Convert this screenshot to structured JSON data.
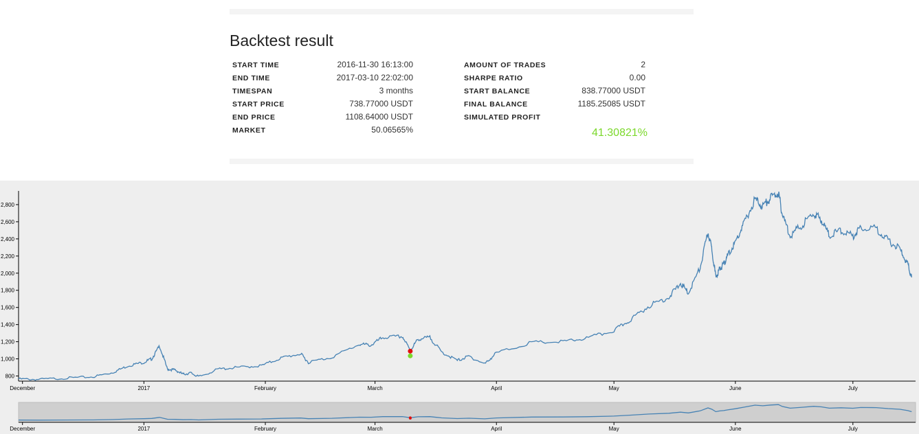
{
  "panel": {
    "title": "Backtest result",
    "left_rows": [
      {
        "label": "START TIME",
        "value": "2016-11-30 16:13:00"
      },
      {
        "label": "END TIME",
        "value": "2017-03-10 22:02:00"
      },
      {
        "label": "TIMESPAN",
        "value": "3 months"
      },
      {
        "label": "START PRICE",
        "value": "738.77000 USDT"
      },
      {
        "label": "END PRICE",
        "value": "1108.64000 USDT"
      },
      {
        "label": "MARKET",
        "value": "50.06565%"
      }
    ],
    "right_rows": [
      {
        "label": "AMOUNT OF TRADES",
        "value": "2"
      },
      {
        "label": "SHARPE RATIO",
        "value": "0.00"
      },
      {
        "label": "START BALANCE",
        "value": "838.77000 USDT"
      },
      {
        "label": "FINAL BALANCE",
        "value": "1185.25085 USDT"
      },
      {
        "label": "SIMULATED PROFIT",
        "value": ""
      }
    ],
    "profit": "41.30821%",
    "colors": {
      "profit": "#7bd82b",
      "line": "#4682b4",
      "buy": "#7bd82b",
      "sell": "#e01010"
    }
  },
  "chart_data": [
    {
      "type": "line",
      "name_hint": "main",
      "x_type": "date",
      "x_ticks": [
        {
          "date": "2016-12-01",
          "label": "December"
        },
        {
          "date": "2017-01-01",
          "label": "2017"
        },
        {
          "date": "2017-02-01",
          "label": "February"
        },
        {
          "date": "2017-03-01",
          "label": "March"
        },
        {
          "date": "2017-04-01",
          "label": "April"
        },
        {
          "date": "2017-05-01",
          "label": "May"
        },
        {
          "date": "2017-06-01",
          "label": "June"
        },
        {
          "date": "2017-07-01",
          "label": "July"
        }
      ],
      "y_ticks": [
        {
          "value": 800,
          "label": "800"
        },
        {
          "value": 1000,
          "label": "1,000"
        },
        {
          "value": 1200,
          "label": "1,200"
        },
        {
          "value": 1400,
          "label": "1,400"
        },
        {
          "value": 1600,
          "label": "1,600"
        },
        {
          "value": 1800,
          "label": "1,800"
        },
        {
          "value": 2000,
          "label": "2,000"
        },
        {
          "value": 2200,
          "label": "2,200"
        },
        {
          "value": 2400,
          "label": "2,400"
        },
        {
          "value": 2600,
          "label": "2,600"
        },
        {
          "value": 2800,
          "label": "2,800"
        }
      ],
      "xlim": [
        "2016-11-30",
        "2017-07-17"
      ],
      "ylim": [
        740,
        2960
      ],
      "grid": false,
      "series": [
        {
          "points": [
            [
              "2016-11-30",
              765
            ],
            [
              "2016-12-05",
              760
            ],
            [
              "2016-12-12",
              775
            ],
            [
              "2016-12-19",
              790
            ],
            [
              "2016-12-24",
              840
            ],
            [
              "2016-12-28",
              920
            ],
            [
              "2017-01-01",
              960
            ],
            [
              "2017-01-03",
              1000
            ],
            [
              "2017-01-05",
              1150
            ],
            [
              "2017-01-07",
              880
            ],
            [
              "2017-01-09",
              870
            ],
            [
              "2017-01-11",
              820
            ],
            [
              "2017-01-13",
              835
            ],
            [
              "2017-01-15",
              790
            ],
            [
              "2017-01-20",
              880
            ],
            [
              "2017-01-25",
              900
            ],
            [
              "2017-01-31",
              920
            ],
            [
              "2017-02-05",
              1010
            ],
            [
              "2017-02-10",
              1060
            ],
            [
              "2017-02-12",
              960
            ],
            [
              "2017-02-18",
              1020
            ],
            [
              "2017-02-25",
              1170
            ],
            [
              "2017-02-28",
              1160
            ],
            [
              "2017-03-03",
              1250
            ],
            [
              "2017-03-08",
              1260
            ],
            [
              "2017-03-10",
              1100
            ],
            [
              "2017-03-12",
              1230
            ],
            [
              "2017-03-15",
              1250
            ],
            [
              "2017-03-18",
              1080
            ],
            [
              "2017-03-22",
              980
            ],
            [
              "2017-03-25",
              1030
            ],
            [
              "2017-03-29",
              940
            ],
            [
              "2017-04-01",
              1070
            ],
            [
              "2017-04-10",
              1190
            ],
            [
              "2017-04-18",
              1200
            ],
            [
              "2017-04-24",
              1240
            ],
            [
              "2017-05-01",
              1330
            ],
            [
              "2017-05-05",
              1450
            ],
            [
              "2017-05-10",
              1620
            ],
            [
              "2017-05-15",
              1720
            ],
            [
              "2017-05-18",
              1880
            ],
            [
              "2017-05-20",
              1770
            ],
            [
              "2017-05-23",
              2060
            ],
            [
              "2017-05-25",
              2480
            ],
            [
              "2017-05-26",
              2280
            ],
            [
              "2017-05-27",
              1950
            ],
            [
              "2017-05-28",
              2050
            ],
            [
              "2017-05-29",
              2100
            ],
            [
              "2017-05-30",
              2200
            ],
            [
              "2017-06-01",
              2360
            ],
            [
              "2017-06-03",
              2560
            ],
            [
              "2017-06-06",
              2860
            ],
            [
              "2017-06-08",
              2780
            ],
            [
              "2017-06-10",
              2880
            ],
            [
              "2017-06-12",
              2940
            ],
            [
              "2017-06-13",
              2680
            ],
            [
              "2017-06-15",
              2440
            ],
            [
              "2017-06-18",
              2560
            ],
            [
              "2017-06-21",
              2700
            ],
            [
              "2017-06-23",
              2620
            ],
            [
              "2017-06-25",
              2440
            ],
            [
              "2017-06-28",
              2500
            ],
            [
              "2017-07-01",
              2430
            ],
            [
              "2017-07-03",
              2540
            ],
            [
              "2017-07-07",
              2520
            ],
            [
              "2017-07-10",
              2380
            ],
            [
              "2017-07-13",
              2280
            ],
            [
              "2017-07-15",
              2100
            ],
            [
              "2017-07-16",
              1950
            ]
          ]
        }
      ],
      "trades": [
        {
          "date": "2017-03-10",
          "price": 1035,
          "action": "buy"
        },
        {
          "date": "2017-03-10",
          "price": 1090,
          "action": "sell"
        }
      ]
    },
    {
      "type": "area",
      "name_hint": "context",
      "x_type": "date",
      "xlim": [
        "2016-11-30",
        "2017-07-17"
      ],
      "x_ticks": [
        {
          "date": "2016-12-01",
          "label": "December"
        },
        {
          "date": "2017-01-01",
          "label": "2017"
        },
        {
          "date": "2017-02-01",
          "label": "February"
        },
        {
          "date": "2017-03-01",
          "label": "March"
        },
        {
          "date": "2017-04-01",
          "label": "April"
        },
        {
          "date": "2017-05-01",
          "label": "May"
        },
        {
          "date": "2017-06-01",
          "label": "June"
        },
        {
          "date": "2017-07-01",
          "label": "July"
        }
      ],
      "brush_selection": "full range"
    }
  ]
}
